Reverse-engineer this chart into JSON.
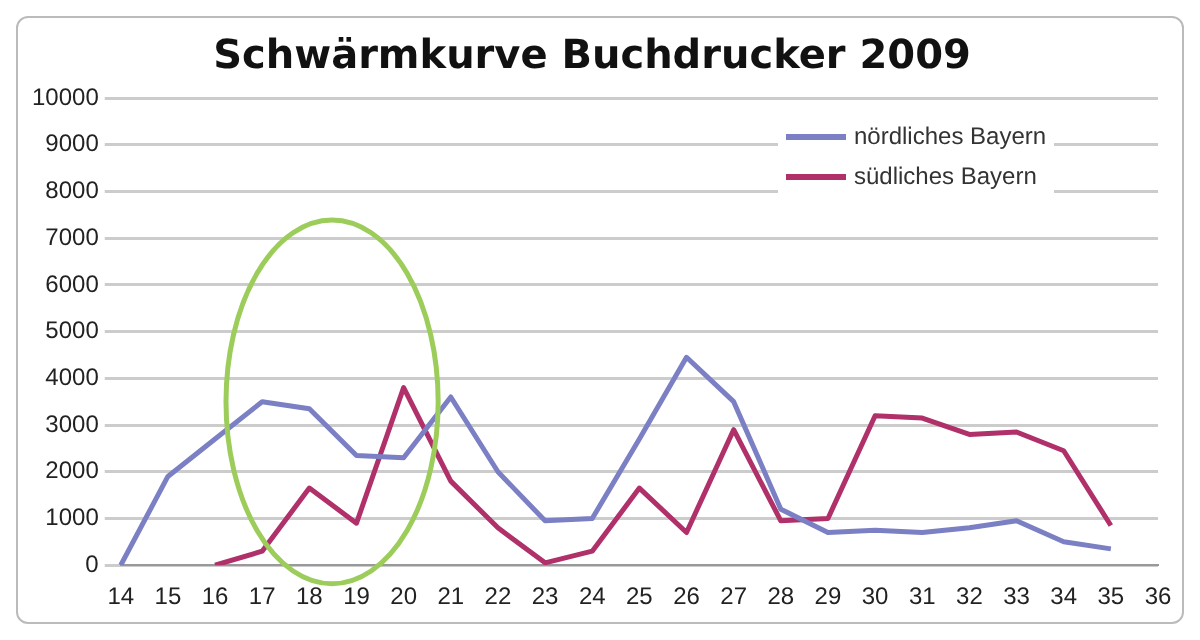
{
  "chart_data": {
    "type": "line",
    "title": "Schwärmkurve Buchdrucker 2009",
    "categories": [
      "14",
      "15",
      "16",
      "17",
      "18",
      "19",
      "20",
      "21",
      "22",
      "23",
      "24",
      "25",
      "26",
      "27",
      "28",
      "29",
      "30",
      "31",
      "32",
      "33",
      "34",
      "35",
      "36"
    ],
    "series": [
      {
        "name": "nördliches Bayern",
        "color": "#7b7fc4",
        "values": [
          0,
          1900,
          2700,
          3500,
          3350,
          2350,
          2300,
          3600,
          2000,
          950,
          1000,
          2700,
          4450,
          3500,
          1200,
          700,
          750,
          700,
          800,
          950,
          500,
          350,
          null
        ]
      },
      {
        "name": "südliches Bayern",
        "color": "#b0306a",
        "values": [
          null,
          null,
          0,
          300,
          1650,
          900,
          3800,
          1800,
          800,
          50,
          300,
          1650,
          700,
          2900,
          950,
          1000,
          3200,
          3150,
          2800,
          2850,
          2450,
          850,
          null
        ]
      }
    ],
    "ylim": [
      0,
      10000
    ],
    "yticks": [
      0,
      1000,
      2000,
      3000,
      4000,
      5000,
      6000,
      7000,
      8000,
      9000,
      10000
    ],
    "grid": "y",
    "legend": "top right",
    "marker": "none",
    "line_style": "solid"
  }
}
